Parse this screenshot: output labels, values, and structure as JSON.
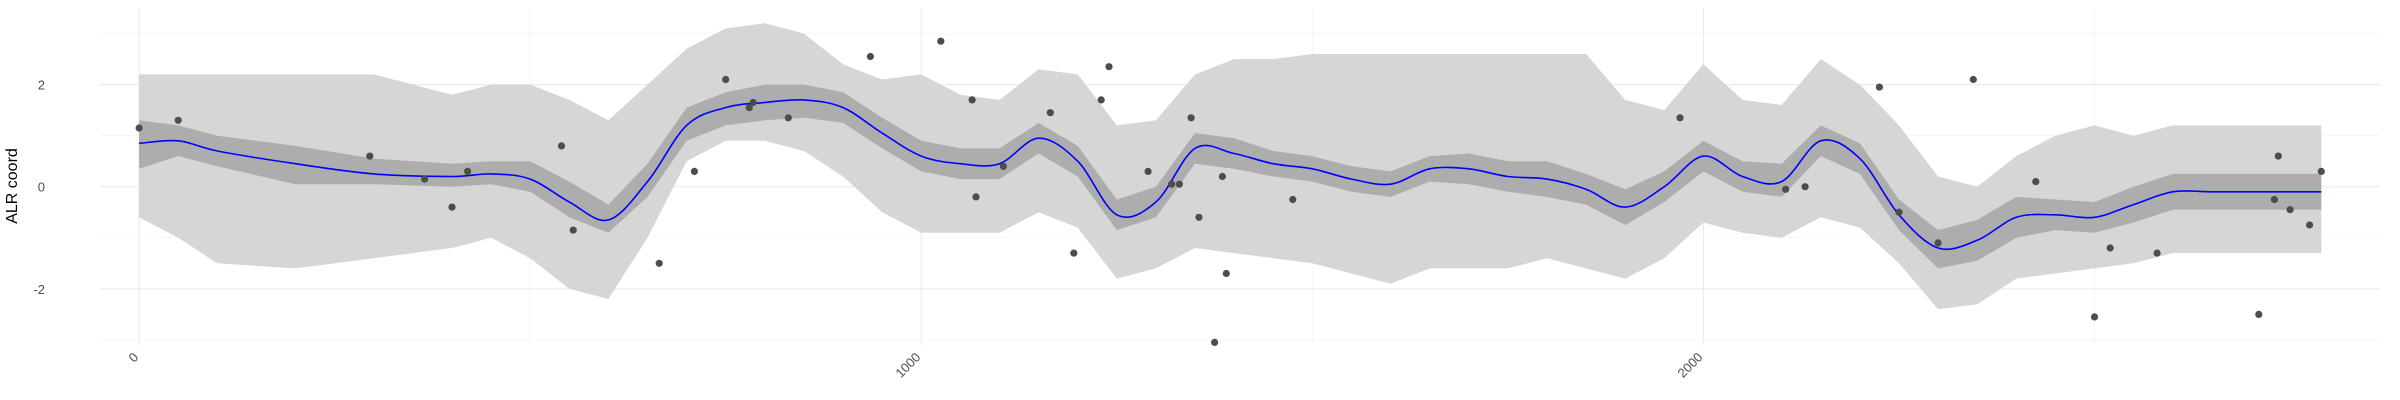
{
  "chart_data": {
    "type": "line",
    "title": "",
    "xlabel": "",
    "ylabel": "ALR coord",
    "xlim": [
      -50,
      2865
    ],
    "ylim": [
      -3.1,
      3.5
    ],
    "x_ticks": [
      0,
      1000,
      2000
    ],
    "x_tick_labels": [
      "0",
      "1000",
      "2000"
    ],
    "y_ticks": [
      -2,
      0,
      2
    ],
    "y_tick_labels": [
      "-2",
      "0",
      "2"
    ],
    "x_minor_ticks": [
      500,
      1500,
      2500
    ],
    "y_minor_ticks": [
      -3,
      -1,
      1,
      3
    ],
    "grid": true,
    "legend": "none",
    "colors": {
      "fit_line": "#0000ff",
      "inner_band": "#adadad",
      "outer_band": "#d6d6d6",
      "points": "#4d4d4d",
      "grid": "#ebebeb"
    },
    "fit": {
      "x": [
        0,
        50,
        100,
        200,
        300,
        400,
        450,
        500,
        550,
        600,
        650,
        700,
        750,
        800,
        850,
        900,
        950,
        1000,
        1050,
        1100,
        1150,
        1200,
        1250,
        1300,
        1350,
        1400,
        1450,
        1500,
        1550,
        1600,
        1650,
        1700,
        1750,
        1800,
        1850,
        1900,
        1950,
        2000,
        2050,
        2100,
        2150,
        2200,
        2250,
        2300,
        2350,
        2400,
        2450,
        2500,
        2550,
        2600,
        2650,
        2700,
        2750,
        2790
      ],
      "y": [
        0.85,
        0.9,
        0.7,
        0.45,
        0.25,
        0.2,
        0.25,
        0.15,
        -0.3,
        -0.65,
        0.1,
        1.2,
        1.55,
        1.65,
        1.7,
        1.55,
        1.05,
        0.6,
        0.45,
        0.45,
        0.95,
        0.5,
        -0.55,
        -0.3,
        0.75,
        0.65,
        0.45,
        0.35,
        0.15,
        0.05,
        0.35,
        0.35,
        0.2,
        0.15,
        -0.05,
        -0.4,
        0.0,
        0.6,
        0.2,
        0.1,
        0.9,
        0.55,
        -0.55,
        -1.2,
        -1.05,
        -0.6,
        -0.55,
        -0.6,
        -0.35,
        -0.1,
        -0.1,
        -0.1,
        -0.1,
        -0.1
      ],
      "lower": [
        0.35,
        0.6,
        0.4,
        0.05,
        0.05,
        0.0,
        0.05,
        -0.1,
        -0.6,
        -0.9,
        -0.2,
        0.9,
        1.2,
        1.3,
        1.35,
        1.25,
        0.75,
        0.3,
        0.15,
        0.15,
        0.65,
        0.2,
        -0.85,
        -0.6,
        0.45,
        0.35,
        0.2,
        0.1,
        -0.1,
        -0.2,
        0.1,
        0.05,
        -0.1,
        -0.2,
        -0.35,
        -0.75,
        -0.3,
        0.3,
        -0.1,
        -0.2,
        0.6,
        0.25,
        -0.85,
        -1.6,
        -1.45,
        -1.0,
        -0.85,
        -0.9,
        -0.7,
        -0.45,
        -0.45,
        -0.45,
        -0.45,
        -0.45
      ],
      "upper": [
        1.3,
        1.2,
        1.0,
        0.8,
        0.55,
        0.45,
        0.5,
        0.5,
        0.1,
        -0.35,
        0.45,
        1.55,
        1.85,
        2.0,
        2.0,
        1.85,
        1.35,
        0.9,
        0.75,
        0.75,
        1.25,
        0.8,
        -0.25,
        0.0,
        1.05,
        0.95,
        0.7,
        0.6,
        0.4,
        0.3,
        0.6,
        0.65,
        0.5,
        0.5,
        0.25,
        -0.05,
        0.3,
        0.9,
        0.5,
        0.45,
        1.2,
        0.85,
        -0.25,
        -0.85,
        -0.65,
        -0.2,
        -0.25,
        -0.3,
        0.0,
        0.25,
        0.25,
        0.25,
        0.25,
        0.25
      ],
      "outer_lower": [
        -0.6,
        -1.0,
        -1.5,
        -1.6,
        -1.4,
        -1.2,
        -1.0,
        -1.4,
        -2.0,
        -2.2,
        -1.0,
        0.5,
        0.9,
        0.9,
        0.7,
        0.2,
        -0.5,
        -0.9,
        -0.9,
        -0.9,
        -0.5,
        -0.8,
        -1.8,
        -1.6,
        -1.2,
        -1.3,
        -1.4,
        -1.5,
        -1.7,
        -1.9,
        -1.6,
        -1.6,
        -1.6,
        -1.4,
        -1.6,
        -1.8,
        -1.4,
        -0.7,
        -0.9,
        -1.0,
        -0.6,
        -0.8,
        -1.5,
        -2.4,
        -2.3,
        -1.8,
        -1.7,
        -1.6,
        -1.5,
        -1.3,
        -1.3,
        -1.3,
        -1.3,
        -1.3
      ],
      "outer_upper": [
        2.2,
        2.2,
        2.2,
        2.2,
        2.2,
        1.8,
        2.0,
        2.0,
        1.7,
        1.3,
        2.0,
        2.7,
        3.1,
        3.2,
        3.0,
        2.4,
        2.1,
        2.2,
        1.8,
        1.7,
        2.3,
        2.2,
        1.2,
        1.3,
        2.2,
        2.5,
        2.5,
        2.6,
        2.6,
        2.6,
        2.6,
        2.6,
        2.6,
        2.6,
        2.6,
        1.7,
        1.5,
        2.4,
        1.7,
        1.6,
        2.5,
        2.0,
        1.2,
        0.2,
        0.0,
        0.6,
        1.0,
        1.2,
        1.0,
        1.2,
        1.2,
        1.2,
        1.2,
        1.2
      ]
    },
    "points": {
      "x": [
        0,
        50,
        295,
        365,
        400,
        420,
        540,
        555,
        665,
        710,
        750,
        780,
        785,
        830,
        935,
        1025,
        1065,
        1070,
        1105,
        1165,
        1195,
        1230,
        1240,
        1290,
        1320,
        1330,
        1345,
        1355,
        1375,
        1385,
        1390,
        1475,
        1970,
        2105,
        2130,
        2225,
        2250,
        2300,
        2345,
        2425,
        2500,
        2520,
        2580,
        2710,
        2730,
        2735,
        2750,
        2775,
        2790
      ],
      "y": [
        1.15,
        1.3,
        0.6,
        0.15,
        -0.4,
        0.3,
        0.8,
        -0.85,
        -1.5,
        0.3,
        2.1,
        1.55,
        1.65,
        1.35,
        2.55,
        2.85,
        1.7,
        -0.2,
        0.4,
        1.45,
        -1.3,
        1.7,
        2.35,
        0.3,
        0.05,
        0.05,
        1.35,
        -0.6,
        -3.05,
        0.2,
        -1.7,
        -0.25,
        1.35,
        -0.05,
        0.0,
        1.95,
        -0.5,
        -1.1,
        2.1,
        0.1,
        -2.55,
        -1.2,
        -1.3,
        -2.5,
        -0.25,
        0.6,
        -0.45,
        -0.75,
        0.3
      ]
    }
  }
}
